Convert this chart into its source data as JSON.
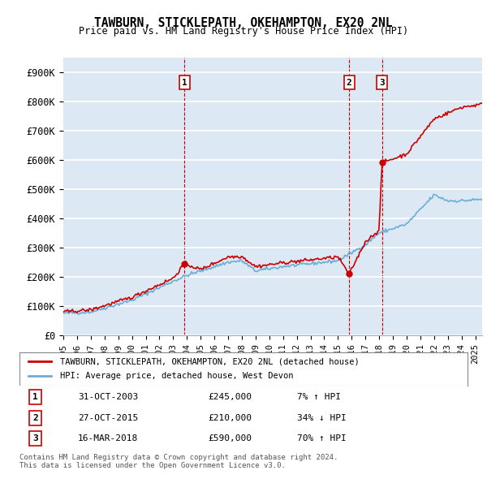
{
  "title": "TAWBURN, STICKLEPATH, OKEHAMPTON, EX20 2NL",
  "subtitle": "Price paid vs. HM Land Registry's House Price Index (HPI)",
  "ylabel_ticks": [
    "£0",
    "£100K",
    "£200K",
    "£300K",
    "£400K",
    "£500K",
    "£600K",
    "£700K",
    "£800K",
    "£900K"
  ],
  "ytick_values": [
    0,
    100000,
    200000,
    300000,
    400000,
    500000,
    600000,
    700000,
    800000,
    900000
  ],
  "ylim": [
    0,
    950000
  ],
  "xlim_start": 1995.0,
  "xlim_end": 2025.5,
  "background_color": "#dce9f5",
  "plot_bg_color": "#dce9f5",
  "grid_color": "#ffffff",
  "hpi_color": "#6aaed6",
  "price_color": "#cc0000",
  "sale_marker_color": "#cc0000",
  "vline_color": "#cc0000",
  "transactions": [
    {
      "id": 1,
      "date_num": 2003.83,
      "price": 245000,
      "date_str": "31-OCT-2003",
      "pct": "7%",
      "dir": "↑"
    },
    {
      "id": 2,
      "date_num": 2015.82,
      "price": 210000,
      "date_str": "27-OCT-2015",
      "pct": "34%",
      "dir": "↓"
    },
    {
      "id": 3,
      "date_num": 2018.21,
      "price": 590000,
      "date_str": "16-MAR-2018",
      "pct": "70%",
      "dir": "↑"
    }
  ],
  "legend_label_price": "TAWBURN, STICKLEPATH, OKEHAMPTON, EX20 2NL (detached house)",
  "legend_label_hpi": "HPI: Average price, detached house, West Devon",
  "footer1": "Contains HM Land Registry data © Crown copyright and database right 2024.",
  "footer2": "This data is licensed under the Open Government Licence v3.0.",
  "table_rows": [
    {
      "id": "1",
      "date": "31-OCT-2003",
      "price": "£245,000",
      "pct": "7% ↑ HPI"
    },
    {
      "id": "2",
      "date": "27-OCT-2015",
      "price": "£210,000",
      "pct": "34% ↓ HPI"
    },
    {
      "id": "3",
      "date": "16-MAR-2018",
      "price": "£590,000",
      "pct": "70% ↑ HPI"
    }
  ]
}
